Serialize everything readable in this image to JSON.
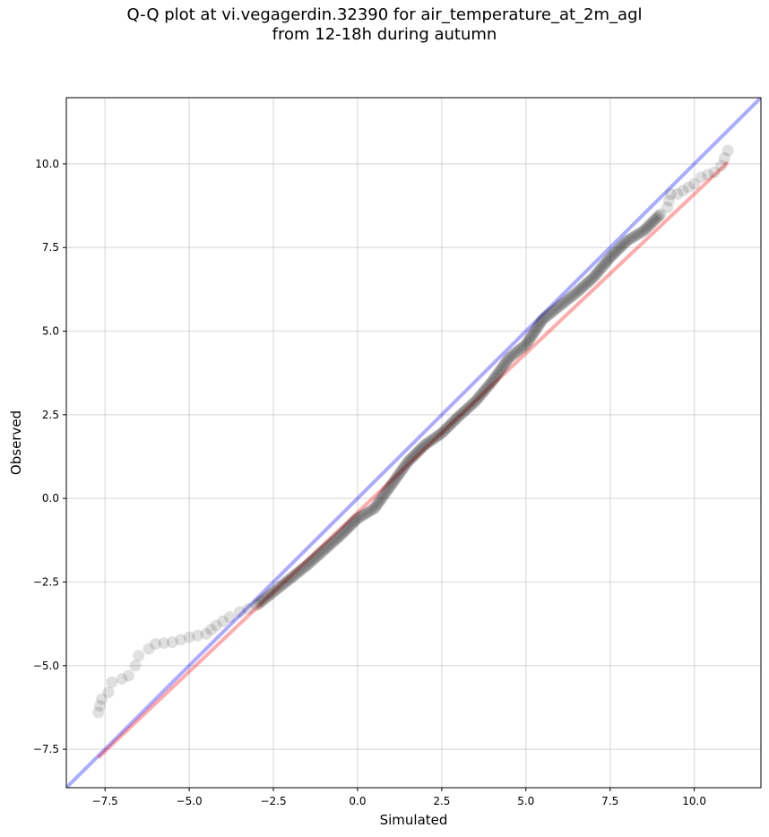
{
  "chart_data": {
    "type": "scatter",
    "title": "Q-Q plot at vi.vegagerdin.32390 for air_temperature_at_2m_agl",
    "subtitle": "from 12-18h during autumn",
    "xlabel": "Simulated",
    "ylabel": "Observed",
    "xlim": [
      -8.65,
      11.98
    ],
    "ylim": [
      -8.65,
      11.98
    ],
    "grid": true,
    "x_ticks": [
      -7.5,
      -5.0,
      -2.5,
      0.0,
      2.5,
      5.0,
      7.5,
      10.0
    ],
    "y_ticks": [
      -7.5,
      -5.0,
      -2.5,
      0.0,
      2.5,
      5.0,
      7.5,
      10.0
    ],
    "x_tick_labels": [
      "−7.5",
      "−5.0",
      "−2.5",
      "0.0",
      "2.5",
      "5.0",
      "7.5",
      "10.0"
    ],
    "y_tick_labels": [
      "−7.5",
      "−5.0",
      "−2.5",
      "0.0",
      "2.5",
      "5.0",
      "7.5",
      "10.0"
    ],
    "colors": {
      "points": "#000000",
      "identity_line": "#0000ff",
      "fit_line": "#ff0000",
      "grid": "#b0b0b0"
    },
    "quantile_curve": [
      {
        "x": -7.7,
        "y": -6.4
      },
      {
        "x": -7.6,
        "y": -6.0
      },
      {
        "x": -7.4,
        "y": -5.8
      },
      {
        "x": -7.3,
        "y": -5.5
      },
      {
        "x": -7.0,
        "y": -5.4
      },
      {
        "x": -6.8,
        "y": -5.3
      },
      {
        "x": -6.6,
        "y": -5.0
      },
      {
        "x": -6.5,
        "y": -4.7
      },
      {
        "x": -6.2,
        "y": -4.5
      },
      {
        "x": -6.0,
        "y": -4.35
      },
      {
        "x": -5.5,
        "y": -4.3
      },
      {
        "x": -5.0,
        "y": -4.15
      },
      {
        "x": -4.5,
        "y": -4.05
      },
      {
        "x": -4.2,
        "y": -3.8
      },
      {
        "x": -3.8,
        "y": -3.55
      },
      {
        "x": -3.5,
        "y": -3.4
      },
      {
        "x": -3.0,
        "y": -3.2
      },
      {
        "x": -2.5,
        "y": -2.8
      },
      {
        "x": -2.0,
        "y": -2.4
      },
      {
        "x": -1.5,
        "y": -2.0
      },
      {
        "x": -1.0,
        "y": -1.55
      },
      {
        "x": -0.5,
        "y": -1.1
      },
      {
        "x": 0.0,
        "y": -0.6
      },
      {
        "x": 0.5,
        "y": -0.3
      },
      {
        "x": 1.0,
        "y": 0.4
      },
      {
        "x": 1.5,
        "y": 1.1
      },
      {
        "x": 2.0,
        "y": 1.6
      },
      {
        "x": 2.5,
        "y": 1.95
      },
      {
        "x": 3.0,
        "y": 2.45
      },
      {
        "x": 3.5,
        "y": 2.9
      },
      {
        "x": 4.0,
        "y": 3.5
      },
      {
        "x": 4.5,
        "y": 4.2
      },
      {
        "x": 5.0,
        "y": 4.6
      },
      {
        "x": 5.5,
        "y": 5.35
      },
      {
        "x": 6.0,
        "y": 5.75
      },
      {
        "x": 6.5,
        "y": 6.15
      },
      {
        "x": 7.0,
        "y": 6.6
      },
      {
        "x": 7.5,
        "y": 7.2
      },
      {
        "x": 8.0,
        "y": 7.7
      },
      {
        "x": 8.5,
        "y": 8.0
      },
      {
        "x": 9.0,
        "y": 8.5
      },
      {
        "x": 9.2,
        "y": 8.7
      },
      {
        "x": 9.3,
        "y": 9.1
      },
      {
        "x": 9.5,
        "y": 9.1
      },
      {
        "x": 10.0,
        "y": 9.4
      },
      {
        "x": 10.2,
        "y": 9.6
      },
      {
        "x": 10.6,
        "y": 9.75
      },
      {
        "x": 10.8,
        "y": 9.95
      },
      {
        "x": 11.0,
        "y": 10.4
      }
    ],
    "identity_line": {
      "x": [
        -8.65,
        11.98
      ],
      "y": [
        -8.65,
        11.98
      ]
    },
    "fit_line": {
      "x": [
        -7.7,
        11.0
      ],
      "y": [
        -7.75,
        10.05
      ]
    }
  }
}
